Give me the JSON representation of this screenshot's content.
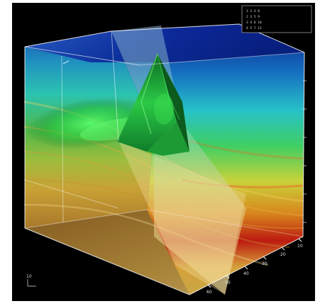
{
  "viewer": {
    "background_color": "#000000",
    "frame_color": "#ffffff",
    "render_style": "volume-rendered-3d-cube",
    "colormap": [
      "#0b1a78",
      "#1e7ac4",
      "#2ec9c0",
      "#3fbf4a",
      "#d6c93a",
      "#d67a1e",
      "#b01010"
    ],
    "feature_color": "#28d23c",
    "info_panel": {
      "lines": [
        "1  2   4   8",
        "2  3   5   9",
        "3  4   6  10",
        "4  5   7  11"
      ]
    },
    "axis_ticks": {
      "front_edge": [
        "60",
        "50",
        "40",
        "30",
        "20",
        "10"
      ]
    },
    "corner_label": "10"
  }
}
